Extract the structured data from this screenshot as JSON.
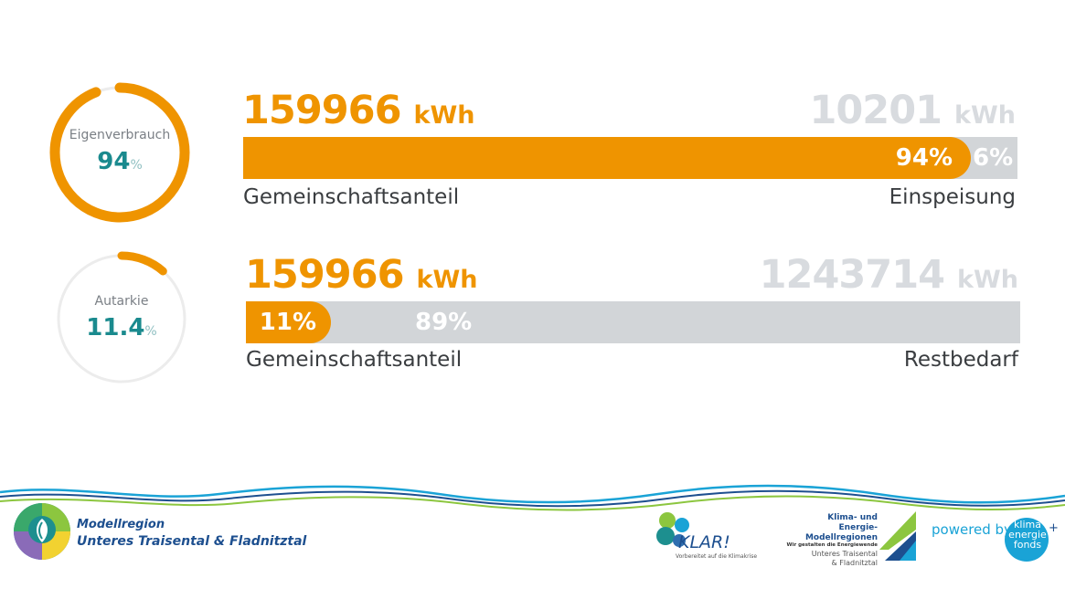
{
  "rings": [
    {
      "label": "Eigenverbrauch",
      "value": "94",
      "unit": "%",
      "fraction": 0.94,
      "color": "#ef9400"
    },
    {
      "label": "Autarkie",
      "value": "11.4",
      "unit": "%",
      "fraction": 0.114,
      "color": "#ef9400"
    }
  ],
  "row1": {
    "left_value": "159966",
    "left_unit": "kWh",
    "right_value": "10201",
    "right_unit": "kWh",
    "left_pct": "94%",
    "right_pct": "6%",
    "left_caption": "Gemeinschaftsanteil",
    "right_caption": "Einspeisung",
    "share": 0.94
  },
  "row2": {
    "left_value": "159966",
    "left_unit": "kWh",
    "right_value": "1243714",
    "right_unit": "kWh",
    "left_pct": "11%",
    "right_pct": "89%",
    "left_caption": "Gemeinschaftsanteil",
    "right_caption": "Restbedarf",
    "share": 0.11
  },
  "footer": {
    "region_line1": "Modellregion",
    "region_line2": "Unteres Traisental & Fladnitztal",
    "klar_word": "KLAR!",
    "klar_sub": "Vorbereitet auf die Klimakrise",
    "kem_line1": "Klima- und Energie-",
    "kem_line2": "Modellregionen",
    "kem_line3": "Wir gestalten die Energiewende",
    "kem_line4": "Unteres Traisental",
    "kem_line5": "& Fladnitztal",
    "powered_by": "powered by",
    "kef_line1": "klima",
    "kef_line2": "energie",
    "kef_line3": "fonds",
    "kef_plus": "+"
  },
  "colors": {
    "orange": "#ef9400",
    "grey": "#d2d5d8",
    "teal": "#1a8a8e",
    "navy": "#1d4f8f",
    "blue": "#1aa3d6"
  }
}
